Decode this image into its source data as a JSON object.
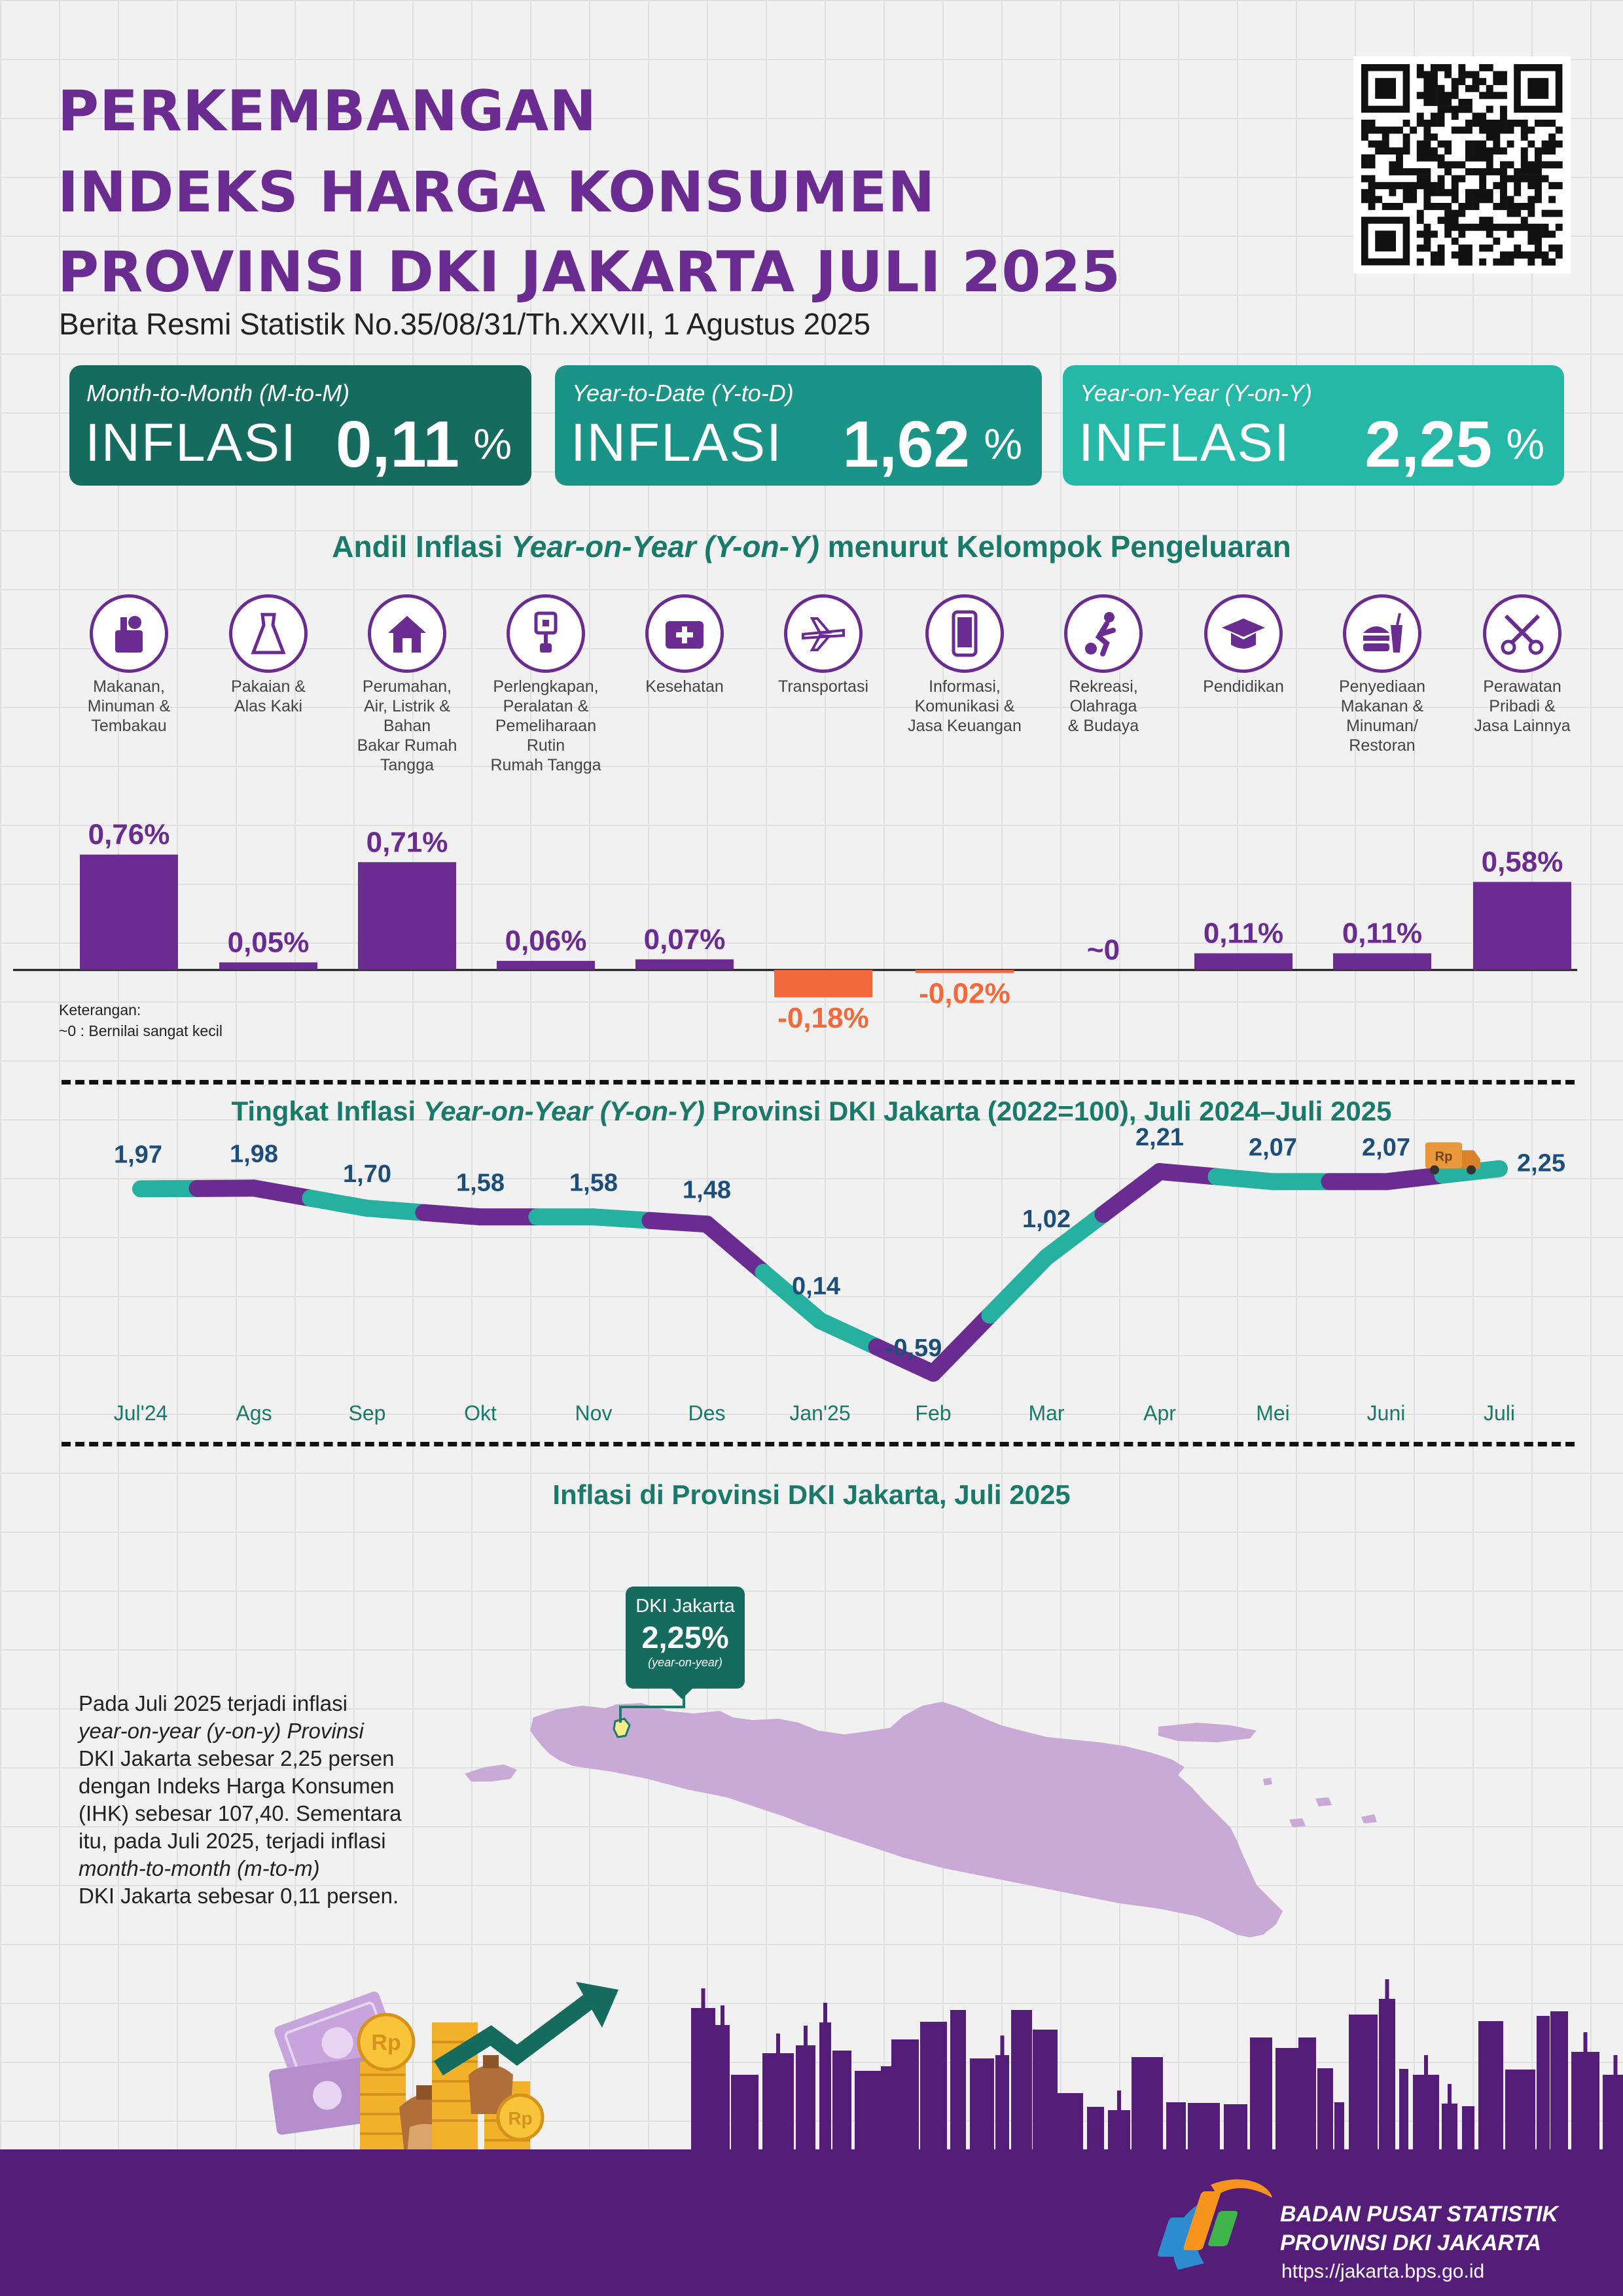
{
  "header": {
    "title_lines": [
      "PERKEMBANGAN",
      "INDEKS HARGA KONSUMEN",
      "PROVINSI DKI JAKARTA JULI 2025"
    ],
    "subtitle": "Berita Resmi Statistik No.35/08/31/Th.XXVII, 1 Agustus 2025"
  },
  "cards": [
    {
      "label": "Month-to-Month (M-to-M)",
      "word": "INFLASI",
      "value": "0,11",
      "unit": "%",
      "color": "#146b5e"
    },
    {
      "label": "Year-to-Date (Y-to-D)",
      "word": "INFLASI",
      "value": "1,62",
      "unit": "%",
      "color": "#1a9487"
    },
    {
      "label": "Year-on-Year (Y-on-Y)",
      "word": "INFLASI",
      "value": "2,25",
      "unit": "%",
      "color": "#26b8a6"
    }
  ],
  "andil": {
    "title_pre": "Andil Inflasi ",
    "title_italic": "Year-on-Year (Y-on-Y)",
    "title_post": " menurut Kelompok Pengeluaran",
    "note_title": "Keterangan:",
    "note_text": "~0 : Bernilai sangat kecil"
  },
  "map_section": {
    "title": "Inflasi di Provinsi DKI Jakarta, Juli 2025",
    "callout_name": "DKI Jakarta",
    "callout_value": "2,25%",
    "callout_note": "(year-on-year)",
    "paragraph_lines": [
      "Pada Juli 2025 terjadi inflasi",
      "year-on-year (y-on-y) Provinsi",
      "DKI Jakarta sebesar 2,25 persen",
      "dengan Indeks Harga Konsumen",
      "(IHK) sebesar 107,40. Sementara",
      "itu, pada Juli 2025, terjadi inflasi",
      "month-to-month (m-to-m)",
      "DKI Jakarta sebesar 0,11 persen."
    ]
  },
  "footer": {
    "org_line1": "BADAN PUSAT STATISTIK",
    "org_line2": "PROVINSI DKI JAKARTA",
    "url": "https://jakarta.bps.go.id"
  },
  "decor": {
    "coin_symbol": "Rp",
    "truck_symbol": "Rp"
  },
  "colors": {
    "purple": "#6a2c91",
    "teal": "#26b0a0",
    "negative": "#f26a3b",
    "dark_teal": "#1a7a6a",
    "line_label": "#1d4e7a"
  },
  "chart_data": [
    {
      "type": "bar",
      "categories": [
        "Makanan, Minuman & Tembakau",
        "Pakaian & Alas Kaki",
        "Perumahan, Air, Listrik & Bahan Bakar Rumah Tangga",
        "Perlengkapan, Peralatan & Pemeliharaan Rutin Rumah Tangga",
        "Kesehatan",
        "Transportasi",
        "Informasi, Komunikasi & Jasa Keuangan",
        "Rekreasi, Olahraga & Budaya",
        "Pendidikan",
        "Penyediaan Makanan & Minuman/ Restoran",
        "Perawatan Pribadi & Jasa Lainnya"
      ],
      "category_label_lines": [
        [
          "Makanan,",
          "Minuman &",
          "Tembakau"
        ],
        [
          "Pakaian &",
          "Alas Kaki"
        ],
        [
          "Perumahan,",
          "Air, Listrik &",
          "Bahan",
          "Bakar Rumah",
          "Tangga"
        ],
        [
          "Perlengkapan,",
          "Peralatan &",
          "Pemeliharaan",
          "Rutin",
          "Rumah Tangga"
        ],
        [
          "Kesehatan"
        ],
        [
          "Transportasi"
        ],
        [
          "Informasi,",
          "Komunikasi &",
          "Jasa Keuangan"
        ],
        [
          "Rekreasi,",
          "Olahraga",
          "& Budaya"
        ],
        [
          "Pendidikan"
        ],
        [
          "Penyediaan",
          "Makanan &",
          "Minuman/",
          "Restoran"
        ],
        [
          "Perawatan",
          "Pribadi &",
          "Jasa Lainnya"
        ]
      ],
      "icons": [
        "grocery-bag-icon",
        "dress-icon",
        "house-icon",
        "plug-icon",
        "first-aid-kit-icon",
        "airplane-icon",
        "smartphone-icon",
        "soccer-player-icon",
        "graduation-cap-icon",
        "fast-food-icon",
        "scissors-comb-icon"
      ],
      "values": [
        0.76,
        0.05,
        0.71,
        0.06,
        0.07,
        -0.18,
        -0.02,
        0.0,
        0.11,
        0.11,
        0.58
      ],
      "labels": [
        "0,76%",
        "0,05%",
        "0,71%",
        "0,06%",
        "0,07%",
        "-0,18%",
        "-0,02%",
        "~0",
        "0,11%",
        "0,11%",
        "0,58%"
      ],
      "unit": "%"
    },
    {
      "type": "line",
      "title_pre": "Tingkat Inflasi ",
      "title_italic": "Year-on-Year (Y-on-Y)",
      "title_post": " Provinsi DKI Jakarta (2022=100), Juli 2024–Juli 2025",
      "x": [
        "Jul'24",
        "Ags",
        "Sep",
        "Okt",
        "Nov",
        "Des",
        "Jan'25",
        "Feb",
        "Mar",
        "Apr",
        "Mei",
        "Juni",
        "Juli"
      ],
      "values": [
        1.97,
        1.98,
        1.7,
        1.58,
        1.58,
        1.48,
        0.14,
        -0.59,
        1.02,
        2.21,
        2.07,
        2.07,
        2.25
      ],
      "labels": [
        "1,97",
        "1,98",
        "1,70",
        "1,58",
        "1,58",
        "1,48",
        "0,14",
        "-0,59",
        "1,02",
        "2,21",
        "2,07",
        "2,07",
        "2,25"
      ],
      "unit": "%"
    }
  ]
}
